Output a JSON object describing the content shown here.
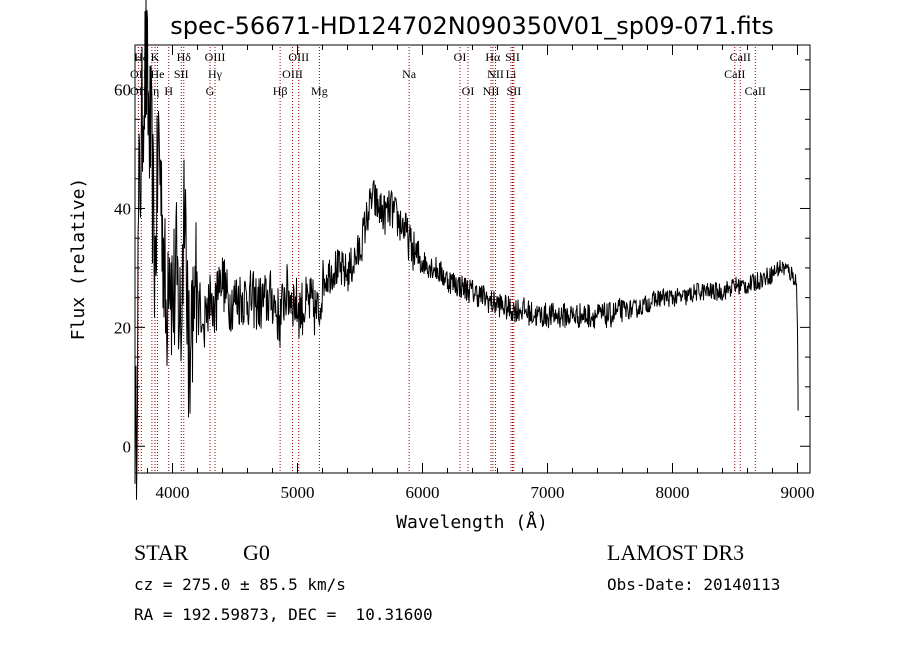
{
  "figure": {
    "title": "spec-56671-HD124702N090350V01_sp09-071.fits",
    "info": {
      "class": "STAR",
      "subclass": "G0",
      "survey": "LAMOST DR3",
      "cz": "cz = 275.0 ± 85.5 km/s",
      "obs_date": "Obs-Date: 20140113",
      "coords": "RA = 192.59873, DEC =  10.31600"
    }
  },
  "chart_data": {
    "type": "line",
    "title": "spec-56671-HD124702N090350V01_sp09-071.fits",
    "xlabel": "Wavelength (Å)",
    "ylabel": "Flux (relative)",
    "xlim": [
      3700,
      9100
    ],
    "ylim": [
      -4.5,
      67.5
    ],
    "xticks": [
      4000,
      5000,
      6000,
      7000,
      8000,
      9000
    ],
    "yticks": [
      0,
      20,
      40,
      60
    ],
    "grid": false,
    "line_color": "#000000",
    "marker_color": "#990000",
    "spectrum": {
      "x": [
        3700,
        3710,
        3730,
        3750,
        3770,
        3790,
        3810,
        3830,
        3860,
        3890,
        3920,
        3950,
        3970,
        4000,
        4030,
        4070,
        4100,
        4130,
        4170,
        4200,
        4250,
        4300,
        4340,
        4380,
        4450,
        4520,
        4600,
        4700,
        4800,
        4860,
        4900,
        4960,
        5010,
        5100,
        5170,
        5200,
        5300,
        5400,
        5500,
        5550,
        5600,
        5650,
        5700,
        5750,
        5800,
        5850,
        5900,
        5950,
        6000,
        6100,
        6200,
        6300,
        6400,
        6500,
        6563,
        6600,
        6700,
        6800,
        6900,
        7000,
        7100,
        7200,
        7300,
        7400,
        7500,
        7600,
        7700,
        7800,
        7900,
        8000,
        8100,
        8200,
        8300,
        8400,
        8500,
        8600,
        8700,
        8800,
        8850,
        8900,
        8950,
        8990,
        9000,
        9005
      ],
      "y": [
        5,
        0,
        40,
        50,
        62,
        64,
        55,
        50,
        30,
        52,
        38,
        20,
        36,
        24,
        28,
        20,
        50,
        12,
        28,
        24,
        22,
        25,
        22,
        30,
        24,
        25,
        25,
        24,
        25,
        21,
        26,
        25,
        23,
        24,
        22,
        28,
        30,
        29,
        33,
        38,
        42,
        40,
        39,
        40,
        38,
        37,
        34,
        32,
        31,
        30,
        28,
        27,
        26,
        25,
        24,
        24,
        23,
        23,
        22,
        22,
        22,
        22,
        22,
        22,
        22,
        23,
        23,
        24,
        25,
        25,
        25,
        26,
        26,
        26,
        27,
        27,
        28,
        29,
        30,
        30,
        29,
        28,
        20,
        6
      ]
    },
    "spectral_lines": [
      {
        "label": "Hδ",
        "wavelength": 3750,
        "row": 1
      },
      {
        "label": "K",
        "wavelength": 3860,
        "row": 1
      },
      {
        "label": "Hδ",
        "wavelength": 4090,
        "row": 1
      },
      {
        "label": "OIII",
        "wavelength": 4340,
        "row": 1
      },
      {
        "label": "OIII",
        "wavelength": 5010,
        "row": 1
      },
      {
        "label": "OI",
        "wavelength": 6300,
        "row": 1
      },
      {
        "label": "Hα",
        "wavelength": 6563,
        "row": 1
      },
      {
        "label": "SII",
        "wavelength": 6720,
        "row": 1
      },
      {
        "label": "CaII",
        "wavelength": 8542,
        "row": 1
      },
      {
        "label": "OII",
        "wavelength": 3727,
        "row": 2
      },
      {
        "label": "He",
        "wavelength": 3880,
        "row": 2
      },
      {
        "label": "SII",
        "wavelength": 4070,
        "row": 2
      },
      {
        "label": "Hγ",
        "wavelength": 4340,
        "row": 2
      },
      {
        "label": "OIII",
        "wavelength": 4960,
        "row": 2
      },
      {
        "label": "Na",
        "wavelength": 5893,
        "row": 2
      },
      {
        "label": "NII",
        "wavelength": 6584,
        "row": 2
      },
      {
        "label": "Li",
        "wavelength": 6708,
        "row": 2
      },
      {
        "label": "CaII",
        "wavelength": 8498,
        "row": 2
      },
      {
        "label": "OII",
        "wavelength": 3727,
        "row": 3
      },
      {
        "label": "Hη",
        "wavelength": 3835,
        "row": 3
      },
      {
        "label": "H",
        "wavelength": 3970,
        "row": 3
      },
      {
        "label": "G",
        "wavelength": 4300,
        "row": 3
      },
      {
        "label": "Hβ",
        "wavelength": 4861,
        "row": 3
      },
      {
        "label": "Mg",
        "wavelength": 5175,
        "row": 3
      },
      {
        "label": "OI",
        "wavelength": 6364,
        "row": 3
      },
      {
        "label": "NII",
        "wavelength": 6548,
        "row": 3
      },
      {
        "label": "SII",
        "wavelength": 6731,
        "row": 3
      },
      {
        "label": "CaII",
        "wavelength": 8662,
        "row": 3
      }
    ]
  }
}
